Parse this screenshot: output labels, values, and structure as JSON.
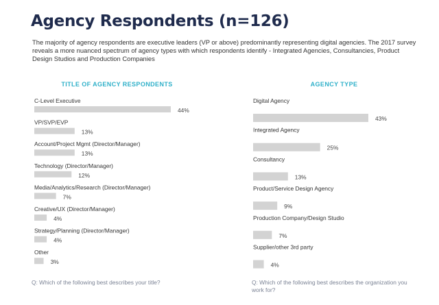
{
  "page": {
    "title": "Agency Respondents (n=126)",
    "intro": "The majority of agency respondents are executive leaders (VP or above) predominantly representing digital agencies. The 2017 survey reveals a more nuanced spectrum of agency types with which respondents identify - Integrated Agencies, Consultancies, Product Design Studios and Production Companies",
    "left_question": "Q: Which of the following best describes your title?",
    "right_question": "Q: Which of the following best describes the organization you work for?"
  },
  "colors": {
    "title": "#1f2b4d",
    "heading": "#2fb0c9",
    "bar": "#d3d3d3"
  },
  "chart_data": [
    {
      "type": "bar",
      "orientation": "horizontal",
      "title": "TITLE OF AGENCY RESPONDENTS",
      "categories": [
        "C-Level Executive",
        "VP/SVP/EVP",
        "Account/Project Mgmt (Director/Manager)",
        "Technology (Director/Manager)",
        "Media/Analytics/Research (Director/Manager)",
        "Creative/UX (Director/Manager)",
        "Strategy/Planning (Director/Manager)",
        "Other"
      ],
      "values": [
        44,
        13,
        13,
        12,
        7,
        4,
        4,
        3
      ],
      "value_labels": [
        "44%",
        "13%",
        "13%",
        "12%",
        "7%",
        "4%",
        "4%",
        "3%"
      ],
      "unit": "%"
    },
    {
      "type": "bar",
      "orientation": "horizontal",
      "title": "AGENCY TYPE",
      "categories": [
        "Digital Agency",
        "Integrated Agency",
        "Consultancy",
        "Product/Service Design Agency",
        "Production Company/Design Studio",
        "Supplier/other 3rd party"
      ],
      "values": [
        43,
        25,
        13,
        9,
        7,
        4
      ],
      "value_labels": [
        "43%",
        "25%",
        "13%",
        "9%",
        "7%",
        "4%"
      ],
      "unit": "%"
    }
  ]
}
